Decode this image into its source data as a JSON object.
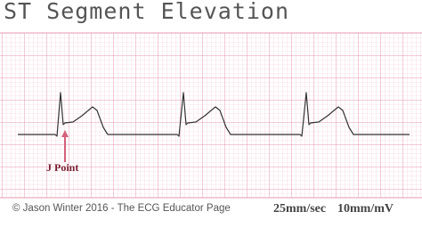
{
  "header": {
    "title": "ST Segment Elevation"
  },
  "annotation": {
    "label": "J Point"
  },
  "footer": {
    "credit": "© Jason Winter 2016 - The ECG Educator Page",
    "paper_speed": "25mm/sec",
    "gain": "10mm/mV"
  }
}
